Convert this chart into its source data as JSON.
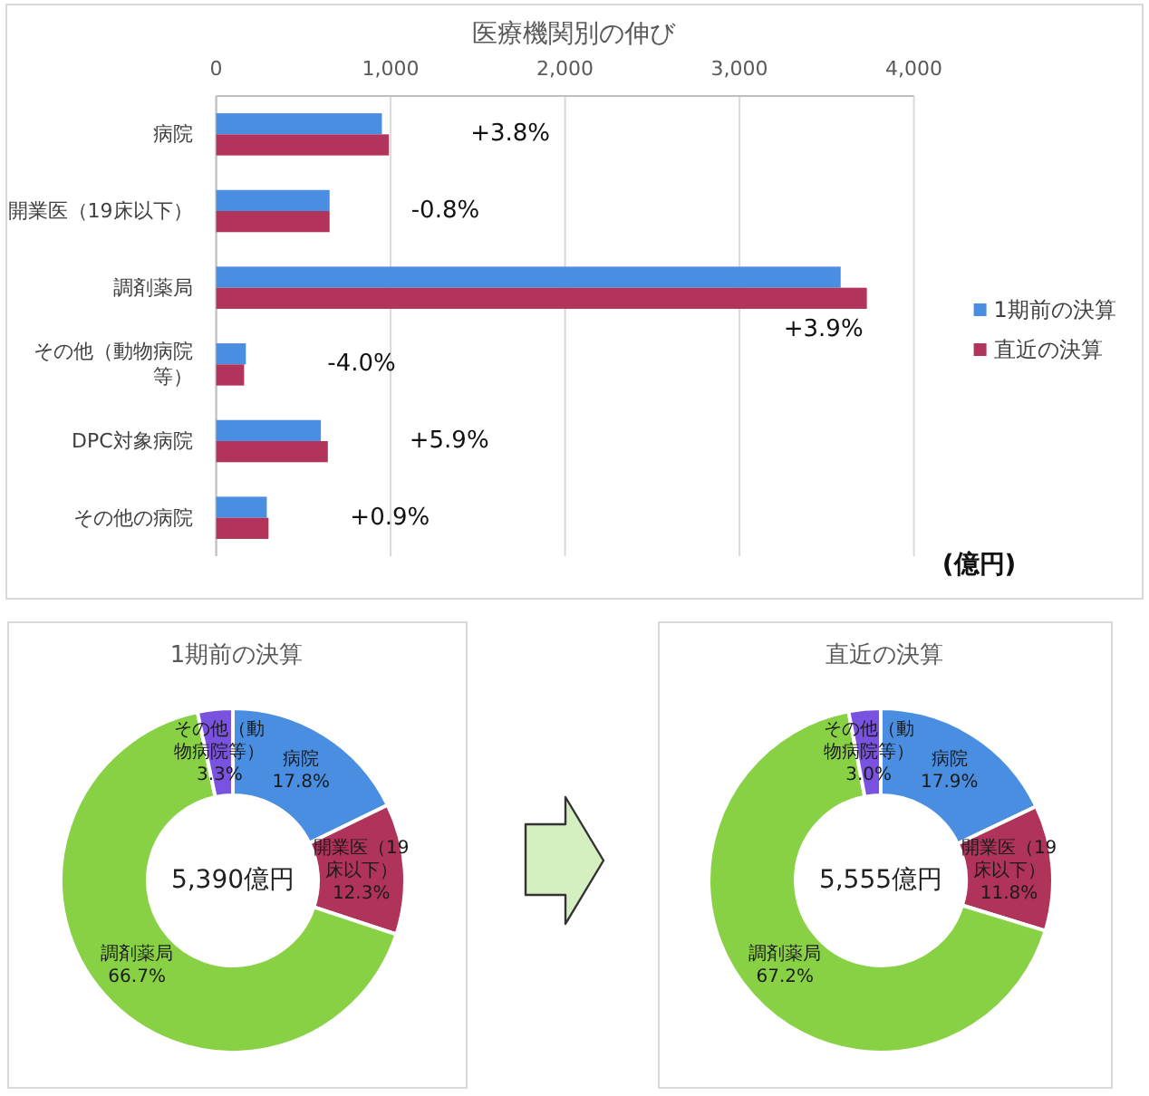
{
  "chart_data": [
    {
      "type": "bar",
      "orientation": "horizontal",
      "title": "医療機関別の伸び",
      "xlabel": "(億円)",
      "categories": [
        "病院",
        "開業医（19床以下）",
        "調剤薬局",
        "その他（動物病院等）",
        "DPC対象病院",
        "その他の病院"
      ],
      "series": [
        {
          "name": "1期前の決算",
          "color": "#4a8ee2",
          "values": [
            950,
            650,
            3580,
            170,
            600,
            290
          ]
        },
        {
          "name": "直近の決算",
          "color": "#b2345a",
          "values": [
            990,
            650,
            3730,
            160,
            640,
            300
          ]
        }
      ],
      "xlim": [
        0,
        4000
      ],
      "xticks": [
        0,
        {
          "value": 1000,
          "label": "1,000"
        },
        {
          "value": 2000,
          "label": "2,000"
        },
        {
          "value": 3000,
          "label": "3,000"
        },
        {
          "value": 4000,
          "label": "4,000"
        }
      ],
      "grid": "x",
      "legend": "right",
      "annotations": [
        "+3.8%",
        "-0.8%",
        "+3.9%",
        "-4.0%",
        "+5.9%",
        "+0.9%"
      ]
    },
    {
      "type": "donut",
      "title": "1期前の決算",
      "categories": [
        "病院",
        "開業医（19床以下）",
        "調剤薬局",
        "その他（動物病院等）"
      ],
      "values": [
        17.8,
        12.3,
        66.7,
        3.3
      ],
      "value_labels": [
        "17.8%",
        "12.3%",
        "66.7%",
        "3.3%"
      ],
      "colors": [
        "#4a8ee2",
        "#b0335a",
        "#88d144",
        "#7a52e0"
      ],
      "annotations": [
        "5,390億円"
      ]
    },
    {
      "type": "donut",
      "title": "直近の決算",
      "categories": [
        "病院",
        "開業医（19床以下）",
        "調剤薬局",
        "その他（動物病院等）"
      ],
      "values": [
        17.9,
        11.8,
        67.2,
        3.0
      ],
      "value_labels": [
        "17.9%",
        "11.8%",
        "67.2%",
        "3.0%"
      ],
      "colors": [
        "#4a8ee2",
        "#b0335a",
        "#88d144",
        "#7a52e0"
      ],
      "annotations": [
        "5,555億円"
      ]
    }
  ]
}
